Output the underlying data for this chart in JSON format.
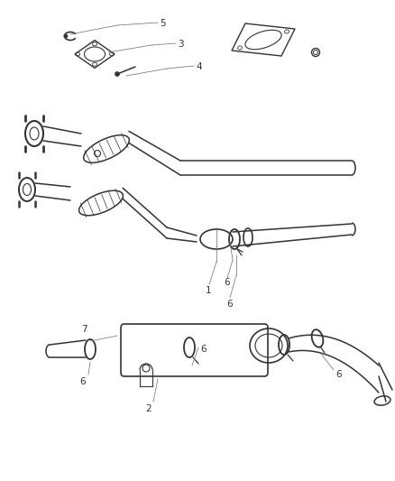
{
  "bg_color": "#ffffff",
  "line_color": "#333333",
  "lw": 1.1,
  "fig_w": 4.39,
  "fig_h": 5.33,
  "dpi": 100
}
